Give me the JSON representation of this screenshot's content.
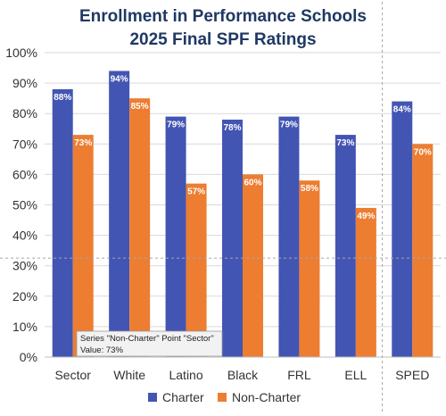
{
  "chart_data": {
    "type": "bar",
    "title_lines": [
      "Enrollment in Performance Schools",
      "2025 Final SPF Ratings"
    ],
    "categories": [
      "Sector",
      "White",
      "Latino",
      "Black",
      "FRL",
      "ELL",
      "SPED"
    ],
    "series": [
      {
        "name": "Charter",
        "values": [
          88,
          94,
          79,
          78,
          79,
          73,
          84
        ],
        "labels": [
          "88%",
          "94%",
          "79%",
          "78%",
          "79%",
          "73%",
          "84%"
        ],
        "color": "#4355b3"
      },
      {
        "name": "Non-Charter",
        "values": [
          73,
          85,
          57,
          60,
          58,
          49,
          70
        ],
        "labels": [
          "73%",
          "85%",
          "57%",
          "60%",
          "58%",
          "49%",
          "70%"
        ],
        "color": "#ed7d31"
      }
    ],
    "ylim": [
      0,
      100
    ],
    "yticks": [
      0,
      10,
      20,
      30,
      40,
      50,
      60,
      70,
      80,
      90,
      100
    ],
    "ytick_labels": [
      "0%",
      "10%",
      "20%",
      "30%",
      "40%",
      "50%",
      "60%",
      "70%",
      "80%",
      "90%",
      "100%"
    ],
    "gridlines": true,
    "legend_position": "bottom",
    "separator_before_category": "SPED",
    "reference_line_value": 32.5
  },
  "tooltip": {
    "line1": "Series \"Non-Charter\" Point \"Sector\"",
    "line2": "Value: 73%"
  }
}
